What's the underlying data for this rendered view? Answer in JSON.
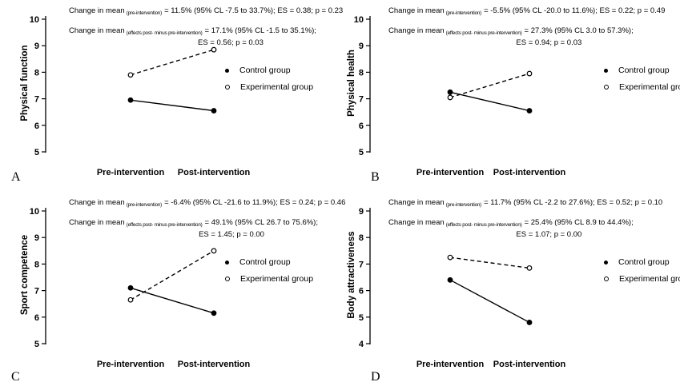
{
  "legend": {
    "control": "Control group",
    "experimental": "Experimental group"
  },
  "colors": {
    "line": "#000000",
    "background": "#ffffff"
  },
  "chart_data": [
    {
      "type": "line",
      "panel_label": "A",
      "ylabel": "Physical function",
      "ylim": [
        5,
        10
      ],
      "yticks": [
        10,
        9,
        8,
        7,
        6,
        5
      ],
      "categories": [
        "Pre-intervention",
        "Post-intervention"
      ],
      "series": [
        {
          "name": "Control group",
          "marker": "filled-circle",
          "line_style": "solid",
          "values": [
            6.95,
            6.55
          ]
        },
        {
          "name": "Experimental group",
          "marker": "open-circle",
          "line_style": "dashed",
          "values": [
            7.9,
            8.85
          ]
        }
      ],
      "annotations": {
        "line1": {
          "prefix": "Change in mean",
          "subscript": "(pre-intervention)",
          "rest": "= 11.5% (95% CL -7.5 to 33.7%); ES = 0.38; p = 0.23"
        },
        "line2": {
          "prefix": "Change in mean",
          "subscript": "(effects post- minus pre-intervention)",
          "rest": "= 17.1% (95% CL -1.5 to 35.1%);",
          "continuation": "ES = 0.56; p = 0.03"
        }
      },
      "legend_position": "right-middle",
      "grid": false
    },
    {
      "type": "line",
      "panel_label": "B",
      "ylabel": "Physical health",
      "ylim": [
        5,
        10
      ],
      "yticks": [
        10,
        9,
        8,
        7,
        6,
        5
      ],
      "categories": [
        "Pre-intervention",
        "Post-intervention"
      ],
      "series": [
        {
          "name": "Control group",
          "marker": "filled-circle",
          "line_style": "solid",
          "values": [
            7.25,
            6.55
          ]
        },
        {
          "name": "Experimental group",
          "marker": "open-circle",
          "line_style": "dashed",
          "values": [
            7.05,
            7.95
          ]
        }
      ],
      "annotations": {
        "line1": {
          "prefix": "Change in mean",
          "subscript": "(pre-intervention)",
          "rest": "= -5.5% (95% CL -20.0 to 11.6%); ES = 0.22; p = 0.49"
        },
        "line2": {
          "prefix": "Change in mean",
          "subscript": "(effects post- minus pre-intervention)",
          "rest": "= 27.3% (95% CL 3.0 to 57.3%);",
          "continuation": "ES = 0.94; p = 0.03"
        }
      },
      "legend_position": "right-middle",
      "grid": false
    },
    {
      "type": "line",
      "panel_label": "C",
      "ylabel": "Sport competence",
      "ylim": [
        5,
        10
      ],
      "yticks": [
        10,
        9,
        8,
        7,
        6,
        5
      ],
      "categories": [
        "Pre-intervention",
        "Post-intervention"
      ],
      "series": [
        {
          "name": "Control group",
          "marker": "filled-circle",
          "line_style": "solid",
          "values": [
            7.1,
            6.15
          ]
        },
        {
          "name": "Experimental group",
          "marker": "open-circle",
          "line_style": "dashed",
          "values": [
            6.65,
            8.5
          ]
        }
      ],
      "annotations": {
        "line1": {
          "prefix": "Change in mean",
          "subscript": "(pre-intervention)",
          "rest": "= -6.4% (95% CL -21.6 to 11.9%); ES = 0.24; p = 0.46"
        },
        "line2": {
          "prefix": "Change in mean",
          "subscript": "(effects post- minus pre-intervention)",
          "rest": "= 49.1% (95% CL 26.7 to 75.6%);",
          "continuation": "ES = 1.45; p = 0.00"
        }
      },
      "legend_position": "right-middle",
      "grid": false
    },
    {
      "type": "line",
      "panel_label": "D",
      "ylabel": "Body attractiveness",
      "ylim": [
        4,
        9
      ],
      "yticks": [
        9,
        8,
        7,
        6,
        5,
        4
      ],
      "categories": [
        "Pre-intervention",
        "Post-intervention"
      ],
      "series": [
        {
          "name": "Control group",
          "marker": "filled-circle",
          "line_style": "solid",
          "values": [
            6.4,
            4.8
          ]
        },
        {
          "name": "Experimental group",
          "marker": "open-circle",
          "line_style": "dashed",
          "values": [
            7.25,
            6.85
          ]
        }
      ],
      "annotations": {
        "line1": {
          "prefix": "Change in mean",
          "subscript": "(pre-intervention)",
          "rest": "= 11.7% (95% CL -2.2 to 27.6%); ES = 0.52; p = 0.10"
        },
        "line2": {
          "prefix": "Change in mean",
          "subscript": "(effects post- minus pre-intervention)",
          "rest": "= 25.4% (95% CL 8.9 to 44.4%);",
          "continuation": "ES = 1.07; p = 0.00"
        }
      },
      "legend_position": "right-middle",
      "grid": false
    }
  ]
}
